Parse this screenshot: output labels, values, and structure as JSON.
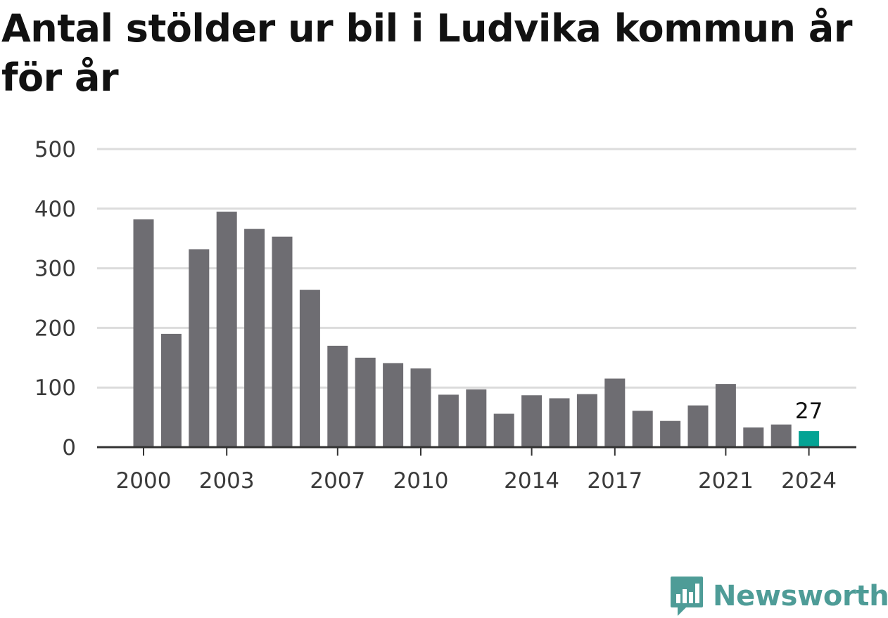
{
  "colors": {
    "bar": "#6e6d72",
    "highlight": "#04a394",
    "grid": "#dcdcdc",
    "axis": "#333333",
    "brand": "#4e9c97"
  },
  "brand": {
    "name": "Newsworthy",
    "logo_icon": "bar-chart-speech-bubble-icon"
  },
  "chart_data": {
    "type": "bar",
    "title": "Antal stölder ur bil i Ludvika kommun år för år",
    "xlabel": "",
    "ylabel": "",
    "ylim": [
      0,
      500
    ],
    "yticks": [
      0,
      100,
      200,
      300,
      400,
      500
    ],
    "grid": true,
    "x": [
      2000,
      2001,
      2002,
      2003,
      2004,
      2005,
      2006,
      2007,
      2008,
      2009,
      2010,
      2011,
      2012,
      2013,
      2014,
      2015,
      2016,
      2017,
      2018,
      2019,
      2020,
      2021,
      2022,
      2023,
      2024
    ],
    "values": [
      382,
      190,
      332,
      395,
      366,
      353,
      264,
      170,
      150,
      141,
      132,
      88,
      97,
      56,
      87,
      82,
      89,
      115,
      61,
      44,
      70,
      106,
      33,
      38,
      27
    ],
    "xtick_labels": [
      "2000",
      "2003",
      "2007",
      "2010",
      "2014",
      "2017",
      "2021",
      "2024"
    ],
    "highlight_category": 2024,
    "annotations": [
      {
        "x": 2024,
        "text": "27"
      }
    ]
  }
}
